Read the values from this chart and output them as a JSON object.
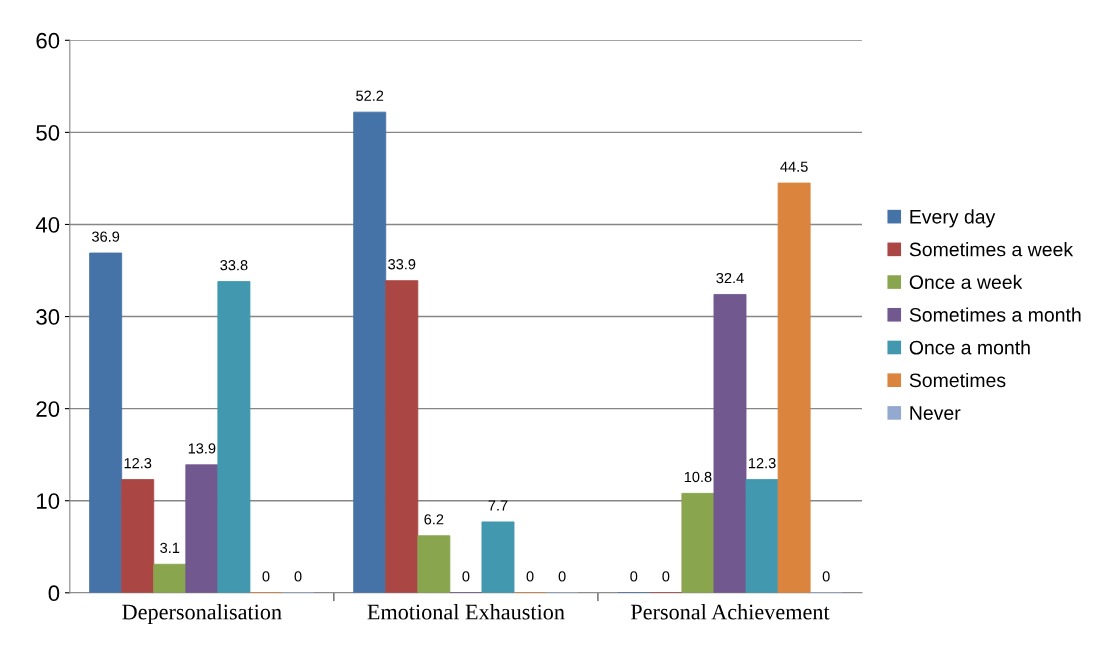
{
  "chart_data": {
    "type": "bar",
    "categories": [
      "Depersonalisation",
      "Emotional Exhaustion",
      "Personal Achievement"
    ],
    "series": [
      {
        "name": "Every day",
        "color": "#4572a7",
        "values": [
          36.9,
          52.2,
          0
        ]
      },
      {
        "name": "Sometimes a week",
        "color": "#aa4643",
        "values": [
          12.3,
          33.9,
          0
        ]
      },
      {
        "name": "Once a week",
        "color": "#89a54e",
        "values": [
          3.1,
          6.2,
          10.8
        ]
      },
      {
        "name": "Sometimes a month",
        "color": "#71588f",
        "values": [
          13.9,
          0,
          32.4
        ]
      },
      {
        "name": "Once a month",
        "color": "#4198af",
        "values": [
          33.8,
          7.7,
          12.3
        ]
      },
      {
        "name": "Sometimes",
        "color": "#db843d",
        "values": [
          0,
          0,
          44.5
        ]
      },
      {
        "name": "Never",
        "color": "#93a9cf",
        "values": [
          0,
          0,
          0
        ]
      }
    ],
    "ylim": [
      0,
      60
    ],
    "yticks": [
      0,
      10,
      20,
      30,
      40,
      50,
      60
    ],
    "grid": "y",
    "legend": "right",
    "data_labels": true
  }
}
